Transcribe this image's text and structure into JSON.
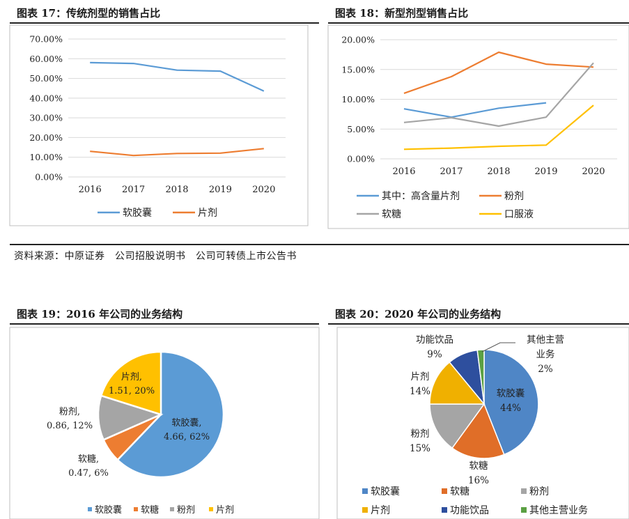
{
  "fig17": {
    "title": "图表 17：传统剂型的销售占比",
    "chart_data": {
      "type": "line",
      "x": [
        "2016",
        "2017",
        "2018",
        "2019",
        "2020"
      ],
      "y_ticks": [
        "70.00%",
        "60.00%",
        "50.00%",
        "40.00%",
        "30.00%",
        "20.00%",
        "10.00%",
        "0.00%"
      ],
      "ylim": [
        0,
        70
      ],
      "grid": true,
      "series": [
        {
          "name": "软胶囊",
          "color": "#5B9BD5",
          "values": [
            58.0,
            57.6,
            54.2,
            53.7,
            43.6
          ]
        },
        {
          "name": "片剂",
          "color": "#ED7D31",
          "values": [
            13.0,
            10.9,
            11.9,
            12.1,
            14.4
          ]
        }
      ]
    }
  },
  "fig18": {
    "title": "图表 18：新型剂型销售占比",
    "chart_data": {
      "type": "line",
      "x": [
        "2016",
        "2017",
        "2018",
        "2019",
        "2020"
      ],
      "y_ticks": [
        "20.00%",
        "15.00%",
        "10.00%",
        "5.00%",
        "0.00%"
      ],
      "ylim": [
        0,
        20
      ],
      "grid": true,
      "series": [
        {
          "name": "其中：高含量片剂",
          "color": "#5B9BD5",
          "values": [
            8.4,
            7.0,
            8.5,
            9.4,
            null
          ]
        },
        {
          "name": "粉剂",
          "color": "#ED7D31",
          "values": [
            11.0,
            13.8,
            17.9,
            15.9,
            15.4
          ]
        },
        {
          "name": "软糖",
          "color": "#A5A5A5",
          "values": [
            6.1,
            6.9,
            5.5,
            7.0,
            16.1
          ]
        },
        {
          "name": "口服液",
          "color": "#FFC000",
          "values": [
            1.6,
            1.8,
            2.1,
            2.3,
            9.0
          ]
        }
      ]
    }
  },
  "source": "资料来源：中原证券　公司招股说明书　公司可转债上市公告书",
  "fig19": {
    "title": "图表 19：2016 年公司的业务结构",
    "chart_data": {
      "type": "pie",
      "slices": [
        {
          "name": "软胶囊",
          "value": 4.66,
          "pct": 62,
          "color": "#5B9BD5",
          "label_l1": "软胶囊,",
          "label_l2": "4.66, 62%"
        },
        {
          "name": "软糖",
          "value": 0.47,
          "pct": 6,
          "color": "#ED7D31",
          "label_l1": "软糖,",
          "label_l2": "0.47, 6%"
        },
        {
          "name": "粉剂",
          "value": 0.86,
          "pct": 12,
          "color": "#A5A5A5",
          "label_l1": "粉剂,",
          "label_l2": "0.86, 12%"
        },
        {
          "name": "片剂",
          "value": 1.51,
          "pct": 20,
          "color": "#FFC000",
          "label_l1": "片剂,",
          "label_l2": "1.51, 20%"
        }
      ],
      "legend": [
        "软胶囊",
        "软糖",
        "粉剂",
        "片剂"
      ]
    }
  },
  "fig20": {
    "title": "图表 20：2020 年公司的业务结构",
    "chart_data": {
      "type": "pie",
      "slices": [
        {
          "name": "软胶囊",
          "pct": 44,
          "color": "#4F86C6",
          "label": [
            "软胶囊",
            "44%"
          ]
        },
        {
          "name": "软糖",
          "pct": 16,
          "color": "#E06E28",
          "label": [
            "软糖",
            "16%"
          ]
        },
        {
          "name": "粉剂",
          "pct": 15,
          "color": "#A5A5A5",
          "label": [
            "粉剂",
            "15%"
          ]
        },
        {
          "name": "片剂",
          "pct": 14,
          "color": "#F0B000",
          "label": [
            "片剂",
            "14%"
          ]
        },
        {
          "name": "功能饮品",
          "pct": 9,
          "color": "#2E4F9E",
          "label": [
            "功能饮品",
            "9%"
          ]
        },
        {
          "name": "其他主营业务",
          "pct": 2,
          "color": "#5BA043",
          "label": [
            "其他主营",
            "业务",
            "2%"
          ]
        }
      ],
      "legend": [
        "软胶囊",
        "软糖",
        "粉剂",
        "片剂",
        "功能饮品",
        "其他主营业务"
      ]
    }
  }
}
